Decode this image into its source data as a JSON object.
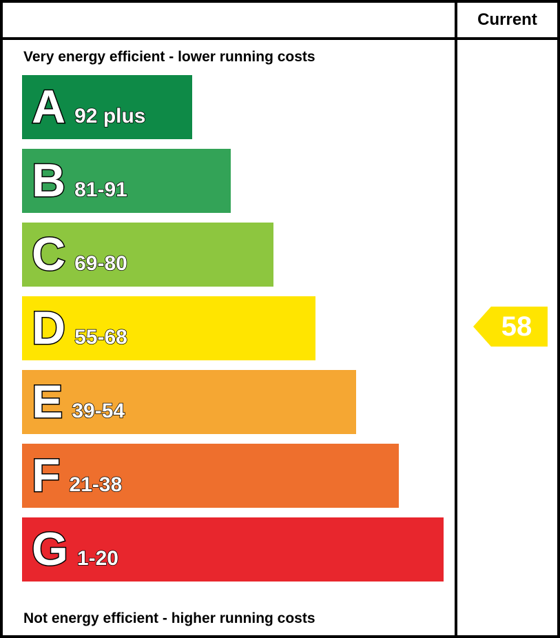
{
  "header": {
    "current_label": "Current"
  },
  "captions": {
    "top": "Very energy efficient - lower running costs",
    "bottom": "Not energy efficient - higher running costs"
  },
  "chart_data": {
    "type": "bar",
    "orientation": "horizontal",
    "description": "Energy efficiency rating bands with current rating indicator",
    "bands": [
      {
        "letter": "A",
        "range": "92 plus",
        "min": 92,
        "max": 100,
        "color": "#0e8a47",
        "width_pct": 40
      },
      {
        "letter": "B",
        "range": "81-91",
        "min": 81,
        "max": 91,
        "color": "#33a357",
        "width_pct": 49
      },
      {
        "letter": "C",
        "range": "69-80",
        "min": 69,
        "max": 80,
        "color": "#8dc63f",
        "width_pct": 59
      },
      {
        "letter": "D",
        "range": "55-68",
        "min": 55,
        "max": 68,
        "color": "#ffe500",
        "width_pct": 69
      },
      {
        "letter": "E",
        "range": "39-54",
        "min": 39,
        "max": 54,
        "color": "#f5a733",
        "width_pct": 78.5
      },
      {
        "letter": "F",
        "range": "21-38",
        "min": 21,
        "max": 38,
        "color": "#ee6f2d",
        "width_pct": 88.5
      },
      {
        "letter": "G",
        "range": "1-20",
        "min": 1,
        "max": 20,
        "color": "#e8262d",
        "width_pct": 99
      }
    ],
    "current": {
      "value": "58",
      "band": "D",
      "color": "#ffe500"
    }
  }
}
